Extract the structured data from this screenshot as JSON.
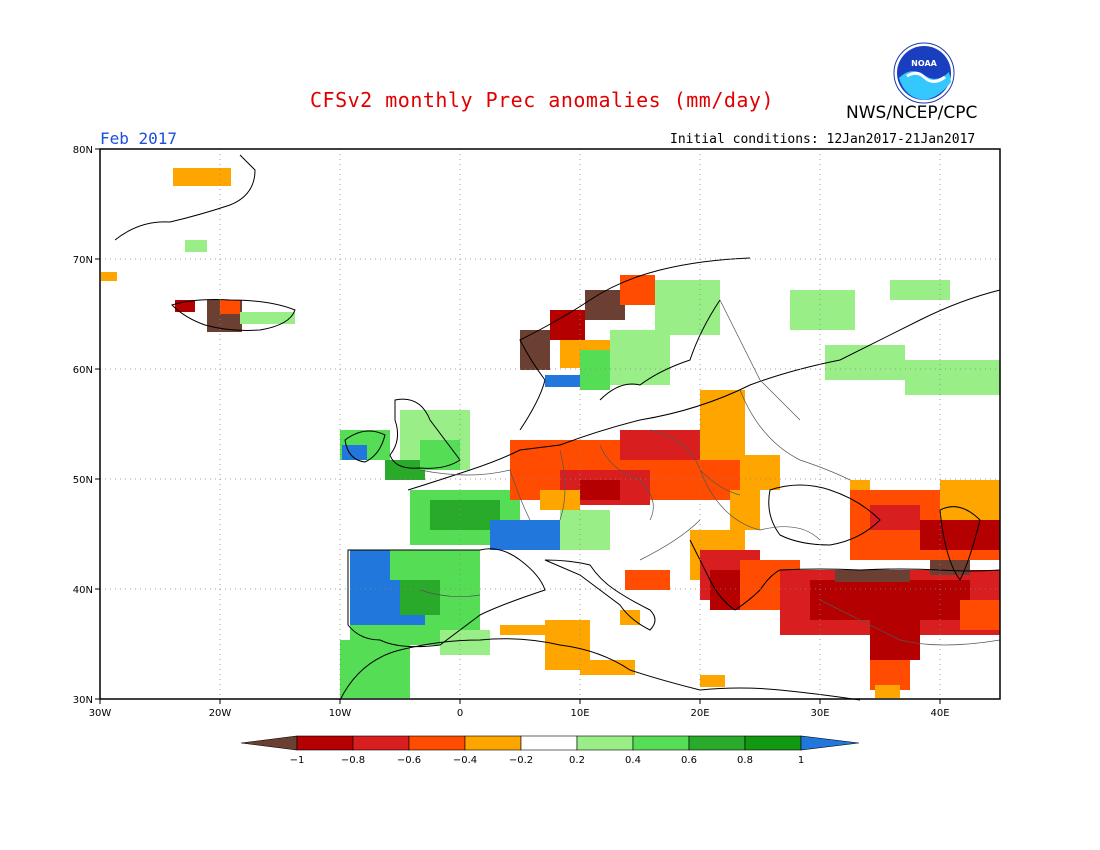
{
  "header": {
    "title": "CFSv2 monthly Prec anomalies (mm/day)",
    "agency": "NWS/NCEP/CPC",
    "month": "Feb 2017",
    "initial_conditions": "Initial conditions: 12Jan2017-21Jan2017",
    "logo_text": "NOAA"
  },
  "map": {
    "lon_range": [
      -30,
      45
    ],
    "lat_range": [
      30,
      80
    ],
    "lon_ticks": [
      "30W",
      "20W",
      "10W",
      "0",
      "10E",
      "20E",
      "30E",
      "40E"
    ],
    "lat_ticks": [
      "30N",
      "40N",
      "50N",
      "60N",
      "70N",
      "80N"
    ],
    "grid": "dotted"
  },
  "colorbar": {
    "labels": [
      "-1",
      "-0.8",
      "-0.6",
      "-0.4",
      "-0.2",
      "0.2",
      "0.4",
      "0.6",
      "0.8",
      "1"
    ],
    "colors": [
      "#6b3f31",
      "#b40000",
      "#d81e1e",
      "#ff4c00",
      "#ffa500",
      "#ffffff",
      "#99ee88",
      "#55dd55",
      "#2aaa2a",
      "#129912",
      "#2277dd"
    ]
  },
  "colors": {
    "title": "#e00000",
    "month": "#1a4ee0",
    "coast": "#000000",
    "border": "#444444"
  }
}
